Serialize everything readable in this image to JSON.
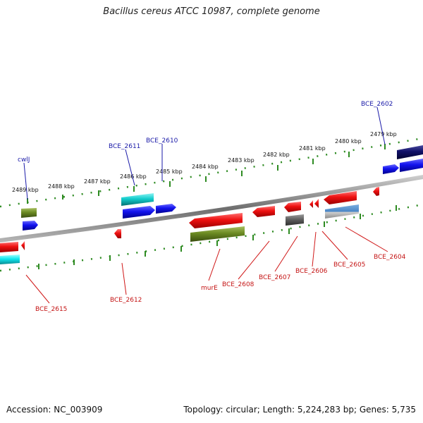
{
  "title": "Bacillus cereus ATCC 10987, complete genome",
  "footer": {
    "accession": "Accession: NC_003909",
    "stats": "Topology: circular; Length: 5,224,283 bp; Genes: 5,735"
  },
  "colors": {
    "forward_label": "#1a1aa8",
    "reverse_label": "#c41414",
    "backbone": "#8a8a8a",
    "scale": "#2e8b22"
  },
  "ticks": [
    {
      "label": "2489 kbp"
    },
    {
      "label": "2488 kbp"
    },
    {
      "label": "2487 kbp"
    },
    {
      "label": "2486 kbp"
    },
    {
      "label": "2485 kbp"
    },
    {
      "label": "2484 kbp"
    },
    {
      "label": "2483 kbp"
    },
    {
      "label": "2482 kbp"
    },
    {
      "label": "2481 kbp"
    },
    {
      "label": "2480 kbp"
    },
    {
      "label": "2479 kbp"
    }
  ],
  "forward_labels": [
    {
      "text": "cwlJ"
    },
    {
      "text": "BCE_2611"
    },
    {
      "text": "BCE_2610"
    },
    {
      "text": "BCE_2602"
    }
  ],
  "reverse_labels": [
    {
      "text": "BCE_2615"
    },
    {
      "text": "BCE_2612"
    },
    {
      "text": "murE"
    },
    {
      "text": "BCE_2608"
    },
    {
      "text": "BCE_2607"
    },
    {
      "text": "BCE_2606"
    },
    {
      "text": "BCE_2605"
    },
    {
      "text": "BCE_2604"
    }
  ]
}
